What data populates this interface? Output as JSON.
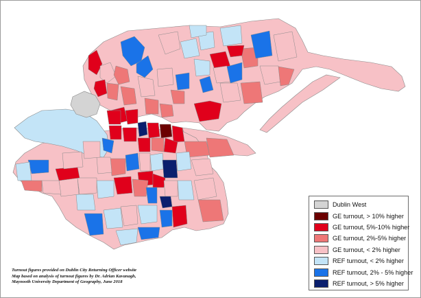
{
  "legend": {
    "items": [
      {
        "label": "Dublin West",
        "color": "#d4d4d4"
      },
      {
        "label": "GE turnout, > 10% higher",
        "color": "#6b0000"
      },
      {
        "label": "GE turnout, 5%-10% higher",
        "color": "#e0001b"
      },
      {
        "label": "GE turnout, 2%-5% higher",
        "color": "#ee7777"
      },
      {
        "label": "GE turnout, < 2% higher",
        "color": "#f7c1c6"
      },
      {
        "label": "REF turnout, < 2% higher",
        "color": "#c3e4f7"
      },
      {
        "label": "REF turnout, 2% - 5% higher",
        "color": "#1a73e8"
      },
      {
        "label": "REF turnout, > 5% higher",
        "color": "#0a1f6e"
      }
    ]
  },
  "credit": {
    "line1": "Turnout figures provided on Dublin City Returning Officer website",
    "line2": "Map based on analysis of turnout figures by Dr. Adrian Kavanagh,",
    "line3": "Maynooth University Department of Geography, June 2018"
  }
}
